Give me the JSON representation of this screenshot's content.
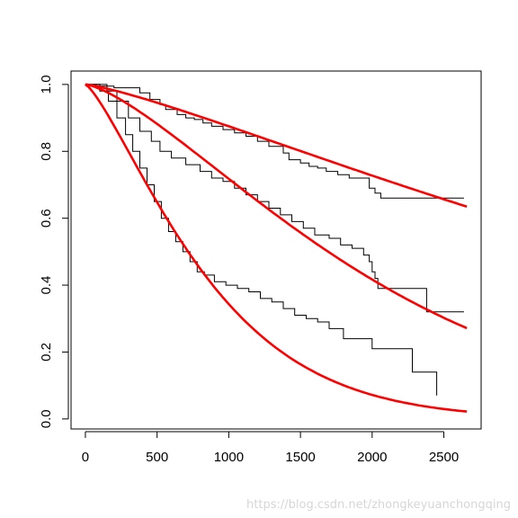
{
  "watermark": "https://blog.csdn.net/zhongkeyuanchongqing",
  "chart_data": {
    "type": "line",
    "title": "",
    "xlabel": "",
    "ylabel": "",
    "xlim": [
      -100,
      2760
    ],
    "ylim": [
      -0.03,
      1.04
    ],
    "x_ticks": [
      0,
      500,
      1000,
      1500,
      2000,
      2500
    ],
    "x_tick_labels": [
      "0",
      "500",
      "1000",
      "1500",
      "2000",
      "2500"
    ],
    "y_ticks": [
      0.0,
      0.2,
      0.4,
      0.6,
      0.8,
      1.0
    ],
    "y_tick_labels": [
      "0.0",
      "0.2",
      "0.4",
      "0.6",
      "0.8",
      "1.0"
    ],
    "grid": false,
    "legend": "none",
    "colors": {
      "kaplan_meier": "#000000",
      "fitted": "#ff0000"
    },
    "series": [
      {
        "kind": "step",
        "color": "#000000",
        "x": [
          0,
          100,
          200,
          380,
          450,
          520,
          560,
          640,
          700,
          760,
          820,
          880,
          960,
          1040,
          1120,
          1200,
          1280,
          1380,
          1420,
          1500,
          1560,
          1620,
          1680,
          1760,
          1840,
          1980,
          2020,
          2060,
          2640
        ],
        "y": [
          1.0,
          0.995,
          0.99,
          0.975,
          0.955,
          0.94,
          0.925,
          0.91,
          0.9,
          0.895,
          0.885,
          0.875,
          0.865,
          0.855,
          0.845,
          0.83,
          0.815,
          0.795,
          0.775,
          0.765,
          0.755,
          0.75,
          0.74,
          0.73,
          0.72,
          0.69,
          0.675,
          0.66,
          0.66
        ]
      },
      {
        "kind": "step",
        "color": "#000000",
        "x": [
          0,
          150,
          220,
          300,
          380,
          460,
          520,
          600,
          700,
          800,
          880,
          960,
          1040,
          1120,
          1200,
          1280,
          1360,
          1440,
          1520,
          1600,
          1700,
          1780,
          1860,
          1940,
          1980,
          2000,
          2020,
          2040,
          2380,
          2640
        ],
        "y": [
          1.0,
          0.98,
          0.95,
          0.9,
          0.86,
          0.83,
          0.8,
          0.78,
          0.76,
          0.74,
          0.72,
          0.71,
          0.69,
          0.67,
          0.65,
          0.63,
          0.61,
          0.59,
          0.57,
          0.55,
          0.54,
          0.52,
          0.51,
          0.49,
          0.47,
          0.44,
          0.42,
          0.39,
          0.32,
          0.32
        ]
      },
      {
        "kind": "step",
        "color": "#000000",
        "x": [
          0,
          100,
          160,
          220,
          280,
          330,
          380,
          430,
          480,
          530,
          580,
          630,
          680,
          730,
          780,
          830,
          900,
          980,
          1060,
          1140,
          1220,
          1300,
          1380,
          1460,
          1540,
          1620,
          1700,
          1800,
          2000,
          2280,
          2450
        ],
        "y": [
          1.0,
          0.98,
          0.95,
          0.9,
          0.85,
          0.8,
          0.75,
          0.7,
          0.65,
          0.6,
          0.56,
          0.53,
          0.5,
          0.47,
          0.44,
          0.43,
          0.41,
          0.4,
          0.39,
          0.38,
          0.36,
          0.35,
          0.33,
          0.31,
          0.3,
          0.29,
          0.27,
          0.24,
          0.21,
          0.14,
          0.07
        ]
      },
      {
        "kind": "curve",
        "color": "#ff0000",
        "scale": 5000,
        "shape": 1.25
      },
      {
        "kind": "curve",
        "color": "#ff0000",
        "scale": 2200,
        "shape": 1.4
      },
      {
        "kind": "curve",
        "color": "#ff0000",
        "scale": 950,
        "shape": 1.3
      }
    ]
  }
}
